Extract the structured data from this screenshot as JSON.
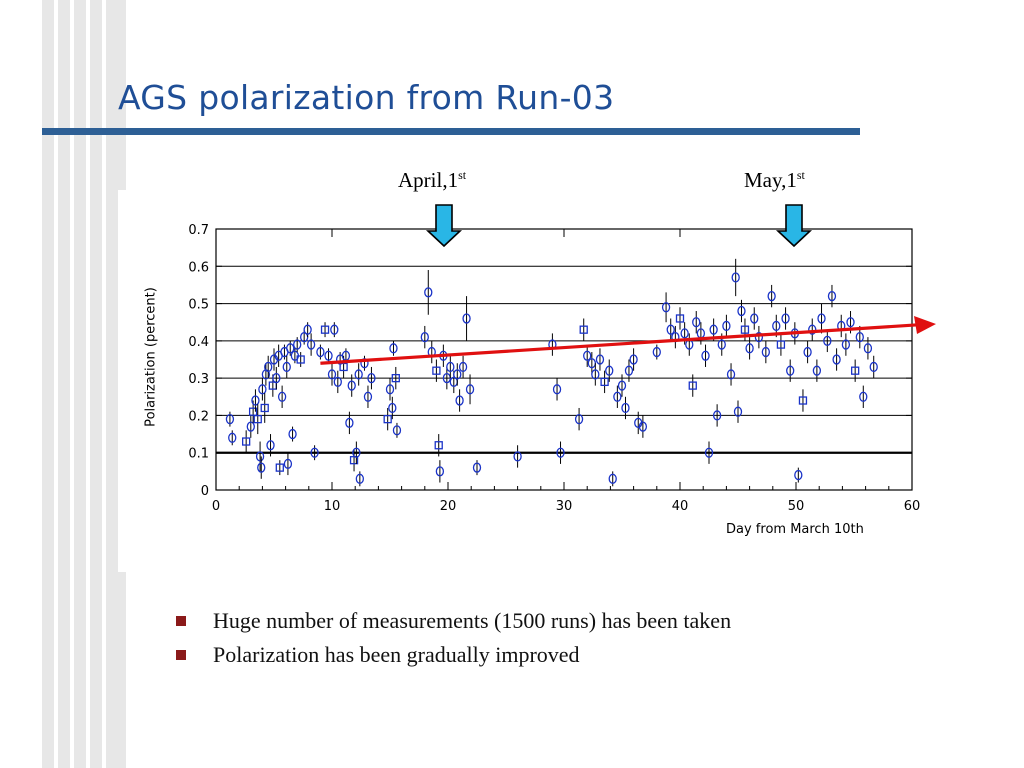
{
  "slide": {
    "title": "AGS polarization from Run-03",
    "bullets": [
      "Huge number of measurements (1500 runs) has been taken",
      "Polarization has been gradually improved"
    ]
  },
  "colors": {
    "title": "#1f4e96",
    "title_rule": "#2d5f95",
    "stripes": "#e7e7e7",
    "bullet_marker": "#8b1a1a",
    "data_points": "#1a33c8",
    "trend_arrow": "#e01010",
    "date_arrows": "#29b6e6"
  },
  "chart_data": {
    "type": "scatter",
    "xlabel": "Day from March 10th",
    "ylabel": "Polarization (percent)",
    "xlim": [
      0,
      60
    ],
    "ylim": [
      0,
      0.7
    ],
    "xticks": [
      0,
      10,
      20,
      30,
      40,
      50,
      60
    ],
    "yticks": [
      0,
      0.1,
      0.2,
      0.3,
      0.4,
      0.5,
      0.6,
      0.7
    ],
    "grid": "horizontal",
    "markers": {
      "circle": "circle",
      "square": "square"
    },
    "annotations": [
      {
        "text": "April,1",
        "sup": "st",
        "x": 20
      },
      {
        "text": "May,1",
        "sup": "st",
        "x": 50
      }
    ],
    "trend": {
      "x": [
        9,
        60
      ],
      "y": [
        0.34,
        0.44
      ]
    },
    "points": [
      {
        "x": 1.2,
        "y": 0.19,
        "err": 0.02,
        "m": "circle"
      },
      {
        "x": 1.4,
        "y": 0.14,
        "err": 0.02,
        "m": "circle"
      },
      {
        "x": 2.6,
        "y": 0.13,
        "err": 0.03,
        "m": "square"
      },
      {
        "x": 3.0,
        "y": 0.17,
        "err": 0.03,
        "m": "circle"
      },
      {
        "x": 3.2,
        "y": 0.21,
        "err": 0.03,
        "m": "square"
      },
      {
        "x": 3.4,
        "y": 0.24,
        "err": 0.03,
        "m": "circle"
      },
      {
        "x": 3.6,
        "y": 0.19,
        "err": 0.04,
        "m": "square"
      },
      {
        "x": 3.8,
        "y": 0.09,
        "err": 0.04,
        "m": "circle"
      },
      {
        "x": 3.9,
        "y": 0.06,
        "err": 0.03,
        "m": "circle"
      },
      {
        "x": 4.0,
        "y": 0.27,
        "err": 0.03,
        "m": "circle"
      },
      {
        "x": 4.2,
        "y": 0.22,
        "err": 0.04,
        "m": "square"
      },
      {
        "x": 4.3,
        "y": 0.31,
        "err": 0.03,
        "m": "circle"
      },
      {
        "x": 4.5,
        "y": 0.33,
        "err": 0.03,
        "m": "circle"
      },
      {
        "x": 4.7,
        "y": 0.12,
        "err": 0.03,
        "m": "circle"
      },
      {
        "x": 4.9,
        "y": 0.28,
        "err": 0.03,
        "m": "square"
      },
      {
        "x": 5.0,
        "y": 0.35,
        "err": 0.03,
        "m": "circle"
      },
      {
        "x": 5.2,
        "y": 0.3,
        "err": 0.03,
        "m": "circle"
      },
      {
        "x": 5.4,
        "y": 0.36,
        "err": 0.03,
        "m": "circle"
      },
      {
        "x": 5.5,
        "y": 0.06,
        "err": 0.02,
        "m": "square"
      },
      {
        "x": 5.7,
        "y": 0.25,
        "err": 0.03,
        "m": "circle"
      },
      {
        "x": 5.9,
        "y": 0.37,
        "err": 0.02,
        "m": "circle"
      },
      {
        "x": 6.1,
        "y": 0.33,
        "err": 0.03,
        "m": "circle"
      },
      {
        "x": 6.2,
        "y": 0.07,
        "err": 0.03,
        "m": "circle"
      },
      {
        "x": 6.4,
        "y": 0.38,
        "err": 0.02,
        "m": "circle"
      },
      {
        "x": 6.6,
        "y": 0.15,
        "err": 0.02,
        "m": "circle"
      },
      {
        "x": 6.8,
        "y": 0.36,
        "err": 0.02,
        "m": "circle"
      },
      {
        "x": 7.0,
        "y": 0.39,
        "err": 0.02,
        "m": "circle"
      },
      {
        "x": 7.3,
        "y": 0.35,
        "err": 0.02,
        "m": "square"
      },
      {
        "x": 7.6,
        "y": 0.41,
        "err": 0.02,
        "m": "circle"
      },
      {
        "x": 7.9,
        "y": 0.43,
        "err": 0.02,
        "m": "circle"
      },
      {
        "x": 8.2,
        "y": 0.39,
        "err": 0.03,
        "m": "circle"
      },
      {
        "x": 8.5,
        "y": 0.1,
        "err": 0.02,
        "m": "circle"
      },
      {
        "x": 9.0,
        "y": 0.37,
        "err": 0.02,
        "m": "circle"
      },
      {
        "x": 9.4,
        "y": 0.43,
        "err": 0.02,
        "m": "square"
      },
      {
        "x": 9.7,
        "y": 0.36,
        "err": 0.02,
        "m": "circle"
      },
      {
        "x": 10.0,
        "y": 0.31,
        "err": 0.03,
        "m": "circle"
      },
      {
        "x": 10.2,
        "y": 0.43,
        "err": 0.02,
        "m": "circle"
      },
      {
        "x": 10.5,
        "y": 0.29,
        "err": 0.03,
        "m": "circle"
      },
      {
        "x": 10.7,
        "y": 0.35,
        "err": 0.02,
        "m": "circle"
      },
      {
        "x": 11.0,
        "y": 0.33,
        "err": 0.03,
        "m": "square"
      },
      {
        "x": 11.2,
        "y": 0.36,
        "err": 0.02,
        "m": "circle"
      },
      {
        "x": 11.5,
        "y": 0.18,
        "err": 0.03,
        "m": "circle"
      },
      {
        "x": 11.7,
        "y": 0.28,
        "err": 0.03,
        "m": "circle"
      },
      {
        "x": 11.9,
        "y": 0.08,
        "err": 0.03,
        "m": "square"
      },
      {
        "x": 12.1,
        "y": 0.1,
        "err": 0.03,
        "m": "circle"
      },
      {
        "x": 12.3,
        "y": 0.31,
        "err": 0.03,
        "m": "circle"
      },
      {
        "x": 12.4,
        "y": 0.03,
        "err": 0.02,
        "m": "circle"
      },
      {
        "x": 12.8,
        "y": 0.34,
        "err": 0.02,
        "m": "circle"
      },
      {
        "x": 13.1,
        "y": 0.25,
        "err": 0.03,
        "m": "circle"
      },
      {
        "x": 13.4,
        "y": 0.3,
        "err": 0.03,
        "m": "circle"
      },
      {
        "x": 14.8,
        "y": 0.19,
        "err": 0.03,
        "m": "square"
      },
      {
        "x": 15.0,
        "y": 0.27,
        "err": 0.03,
        "m": "circle"
      },
      {
        "x": 15.2,
        "y": 0.22,
        "err": 0.03,
        "m": "circle"
      },
      {
        "x": 15.3,
        "y": 0.38,
        "err": 0.02,
        "m": "circle"
      },
      {
        "x": 15.5,
        "y": 0.3,
        "err": 0.03,
        "m": "square"
      },
      {
        "x": 15.6,
        "y": 0.16,
        "err": 0.02,
        "m": "circle"
      },
      {
        "x": 18.0,
        "y": 0.41,
        "err": 0.03,
        "m": "circle"
      },
      {
        "x": 18.3,
        "y": 0.53,
        "err": 0.06,
        "m": "circle"
      },
      {
        "x": 18.6,
        "y": 0.37,
        "err": 0.03,
        "m": "circle"
      },
      {
        "x": 19.0,
        "y": 0.32,
        "err": 0.03,
        "m": "square"
      },
      {
        "x": 19.2,
        "y": 0.12,
        "err": 0.03,
        "m": "square"
      },
      {
        "x": 19.3,
        "y": 0.05,
        "err": 0.03,
        "m": "circle"
      },
      {
        "x": 19.6,
        "y": 0.36,
        "err": 0.03,
        "m": "circle"
      },
      {
        "x": 19.9,
        "y": 0.3,
        "err": 0.03,
        "m": "circle"
      },
      {
        "x": 20.2,
        "y": 0.33,
        "err": 0.03,
        "m": "circle"
      },
      {
        "x": 20.5,
        "y": 0.29,
        "err": 0.03,
        "m": "circle"
      },
      {
        "x": 20.8,
        "y": 0.31,
        "err": 0.03,
        "m": "circle"
      },
      {
        "x": 21.0,
        "y": 0.24,
        "err": 0.03,
        "m": "circle"
      },
      {
        "x": 21.3,
        "y": 0.33,
        "err": 0.03,
        "m": "circle"
      },
      {
        "x": 21.6,
        "y": 0.46,
        "err": 0.06,
        "m": "circle"
      },
      {
        "x": 21.9,
        "y": 0.27,
        "err": 0.04,
        "m": "circle"
      },
      {
        "x": 22.5,
        "y": 0.06,
        "err": 0.02,
        "m": "circle"
      },
      {
        "x": 26.0,
        "y": 0.09,
        "err": 0.03,
        "m": "circle"
      },
      {
        "x": 29.0,
        "y": 0.39,
        "err": 0.03,
        "m": "circle"
      },
      {
        "x": 29.4,
        "y": 0.27,
        "err": 0.03,
        "m": "circle"
      },
      {
        "x": 29.7,
        "y": 0.1,
        "err": 0.03,
        "m": "circle"
      },
      {
        "x": 31.3,
        "y": 0.19,
        "err": 0.03,
        "m": "circle"
      },
      {
        "x": 31.7,
        "y": 0.43,
        "err": 0.03,
        "m": "square"
      },
      {
        "x": 32.0,
        "y": 0.36,
        "err": 0.03,
        "m": "circle"
      },
      {
        "x": 32.4,
        "y": 0.34,
        "err": 0.03,
        "m": "circle"
      },
      {
        "x": 32.7,
        "y": 0.31,
        "err": 0.03,
        "m": "circle"
      },
      {
        "x": 33.1,
        "y": 0.35,
        "err": 0.03,
        "m": "circle"
      },
      {
        "x": 33.5,
        "y": 0.29,
        "err": 0.03,
        "m": "square"
      },
      {
        "x": 33.9,
        "y": 0.32,
        "err": 0.03,
        "m": "circle"
      },
      {
        "x": 34.2,
        "y": 0.03,
        "err": 0.02,
        "m": "circle"
      },
      {
        "x": 34.6,
        "y": 0.25,
        "err": 0.03,
        "m": "circle"
      },
      {
        "x": 35.0,
        "y": 0.28,
        "err": 0.03,
        "m": "circle"
      },
      {
        "x": 35.3,
        "y": 0.22,
        "err": 0.03,
        "m": "circle"
      },
      {
        "x": 35.6,
        "y": 0.32,
        "err": 0.03,
        "m": "circle"
      },
      {
        "x": 36.0,
        "y": 0.35,
        "err": 0.03,
        "m": "circle"
      },
      {
        "x": 36.4,
        "y": 0.18,
        "err": 0.03,
        "m": "circle"
      },
      {
        "x": 36.8,
        "y": 0.17,
        "err": 0.03,
        "m": "circle"
      },
      {
        "x": 38.0,
        "y": 0.37,
        "err": 0.02,
        "m": "circle"
      },
      {
        "x": 38.8,
        "y": 0.49,
        "err": 0.04,
        "m": "circle"
      },
      {
        "x": 39.2,
        "y": 0.43,
        "err": 0.03,
        "m": "circle"
      },
      {
        "x": 39.6,
        "y": 0.41,
        "err": 0.03,
        "m": "circle"
      },
      {
        "x": 40.0,
        "y": 0.46,
        "err": 0.03,
        "m": "square"
      },
      {
        "x": 40.4,
        "y": 0.42,
        "err": 0.03,
        "m": "circle"
      },
      {
        "x": 40.8,
        "y": 0.39,
        "err": 0.03,
        "m": "circle"
      },
      {
        "x": 41.1,
        "y": 0.28,
        "err": 0.03,
        "m": "square"
      },
      {
        "x": 41.4,
        "y": 0.45,
        "err": 0.03,
        "m": "circle"
      },
      {
        "x": 41.8,
        "y": 0.42,
        "err": 0.03,
        "m": "circle"
      },
      {
        "x": 42.2,
        "y": 0.36,
        "err": 0.03,
        "m": "circle"
      },
      {
        "x": 42.5,
        "y": 0.1,
        "err": 0.03,
        "m": "circle"
      },
      {
        "x": 42.9,
        "y": 0.43,
        "err": 0.03,
        "m": "circle"
      },
      {
        "x": 43.2,
        "y": 0.2,
        "err": 0.03,
        "m": "circle"
      },
      {
        "x": 43.6,
        "y": 0.39,
        "err": 0.03,
        "m": "circle"
      },
      {
        "x": 44.0,
        "y": 0.44,
        "err": 0.03,
        "m": "circle"
      },
      {
        "x": 44.4,
        "y": 0.31,
        "err": 0.03,
        "m": "circle"
      },
      {
        "x": 44.8,
        "y": 0.57,
        "err": 0.05,
        "m": "circle"
      },
      {
        "x": 45.0,
        "y": 0.21,
        "err": 0.03,
        "m": "circle"
      },
      {
        "x": 45.3,
        "y": 0.48,
        "err": 0.03,
        "m": "circle"
      },
      {
        "x": 45.6,
        "y": 0.43,
        "err": 0.03,
        "m": "square"
      },
      {
        "x": 46.0,
        "y": 0.38,
        "err": 0.03,
        "m": "circle"
      },
      {
        "x": 46.4,
        "y": 0.46,
        "err": 0.03,
        "m": "circle"
      },
      {
        "x": 46.8,
        "y": 0.41,
        "err": 0.03,
        "m": "circle"
      },
      {
        "x": 47.4,
        "y": 0.37,
        "err": 0.03,
        "m": "circle"
      },
      {
        "x": 47.9,
        "y": 0.52,
        "err": 0.03,
        "m": "circle"
      },
      {
        "x": 48.3,
        "y": 0.44,
        "err": 0.03,
        "m": "circle"
      },
      {
        "x": 48.7,
        "y": 0.39,
        "err": 0.03,
        "m": "square"
      },
      {
        "x": 49.1,
        "y": 0.46,
        "err": 0.03,
        "m": "circle"
      },
      {
        "x": 49.5,
        "y": 0.32,
        "err": 0.03,
        "m": "circle"
      },
      {
        "x": 49.9,
        "y": 0.42,
        "err": 0.03,
        "m": "circle"
      },
      {
        "x": 50.2,
        "y": 0.04,
        "err": 0.02,
        "m": "circle"
      },
      {
        "x": 50.6,
        "y": 0.24,
        "err": 0.03,
        "m": "square"
      },
      {
        "x": 51.0,
        "y": 0.37,
        "err": 0.03,
        "m": "circle"
      },
      {
        "x": 51.4,
        "y": 0.43,
        "err": 0.03,
        "m": "circle"
      },
      {
        "x": 51.8,
        "y": 0.32,
        "err": 0.03,
        "m": "circle"
      },
      {
        "x": 52.2,
        "y": 0.46,
        "err": 0.04,
        "m": "circle"
      },
      {
        "x": 52.7,
        "y": 0.4,
        "err": 0.03,
        "m": "circle"
      },
      {
        "x": 53.1,
        "y": 0.52,
        "err": 0.03,
        "m": "circle"
      },
      {
        "x": 53.5,
        "y": 0.35,
        "err": 0.03,
        "m": "circle"
      },
      {
        "x": 53.9,
        "y": 0.44,
        "err": 0.03,
        "m": "circle"
      },
      {
        "x": 54.3,
        "y": 0.39,
        "err": 0.03,
        "m": "circle"
      },
      {
        "x": 54.7,
        "y": 0.45,
        "err": 0.03,
        "m": "circle"
      },
      {
        "x": 55.1,
        "y": 0.32,
        "err": 0.03,
        "m": "square"
      },
      {
        "x": 55.5,
        "y": 0.41,
        "err": 0.03,
        "m": "circle"
      },
      {
        "x": 55.8,
        "y": 0.25,
        "err": 0.03,
        "m": "circle"
      },
      {
        "x": 56.2,
        "y": 0.38,
        "err": 0.03,
        "m": "circle"
      },
      {
        "x": 56.7,
        "y": 0.33,
        "err": 0.03,
        "m": "circle"
      }
    ]
  }
}
